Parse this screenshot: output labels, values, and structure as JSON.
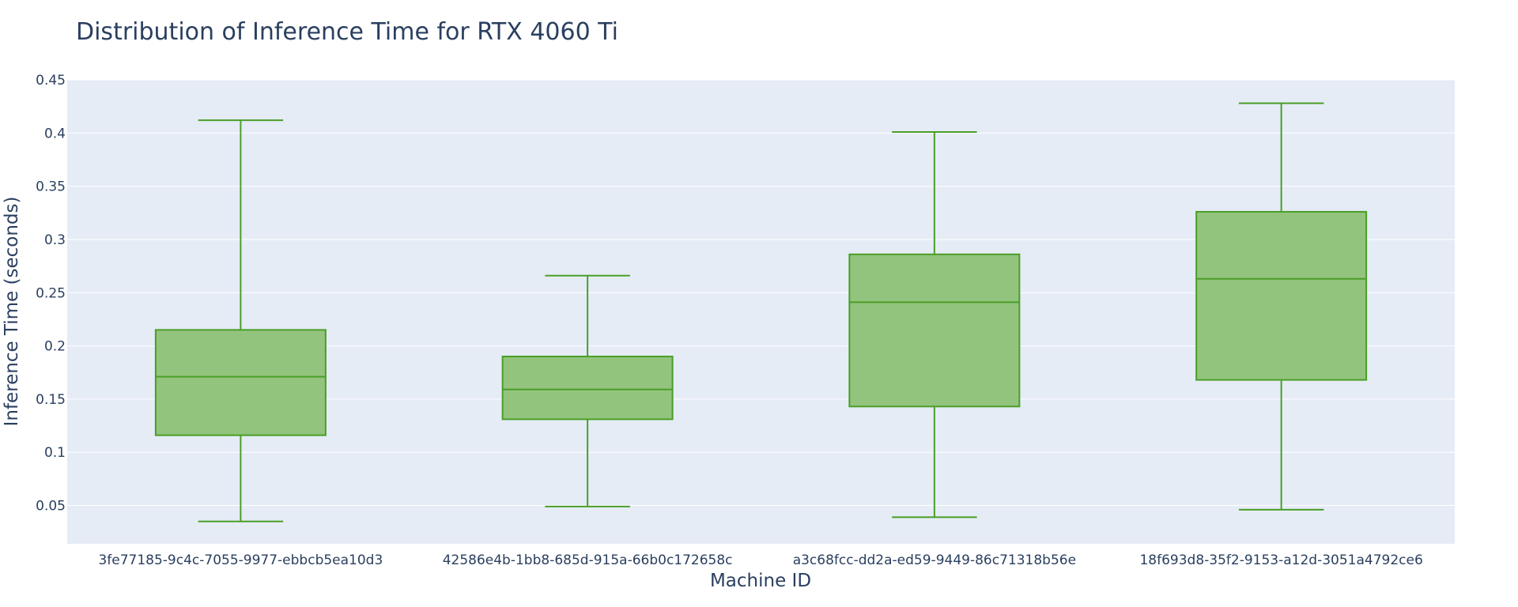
{
  "chart_data": {
    "type": "box",
    "title": "Distribution of Inference Time for RTX 4060 Ti",
    "xlabel": "Machine ID",
    "ylabel": "Inference Time (seconds)",
    "ylim": [
      0.014,
      0.45
    ],
    "yticks": [
      0.05,
      0.1,
      0.15,
      0.2,
      0.25,
      0.3,
      0.35,
      0.4,
      0.45
    ],
    "ytick_labels": [
      "0.05",
      "0.1",
      "0.15",
      "0.2",
      "0.25",
      "0.3",
      "0.35",
      "0.4",
      "0.45"
    ],
    "grid": true,
    "colors": {
      "line": "#4a9e27",
      "fill": "#93c47d",
      "plot_bg": "#e5ecf6",
      "grid": "#ffffff"
    },
    "categories": [
      "3fe77185-9c4c-7055-9977-ebbcb5ea10d3",
      "42586e4b-1bb8-685d-915a-66b0c172658c",
      "a3c68fcc-dd2a-ed59-9449-86c71318b56e",
      "18f693d8-35f2-9153-a12d-3051a4792ce6"
    ],
    "boxes": [
      {
        "min": 0.035,
        "q1": 0.116,
        "median": 0.171,
        "q3": 0.215,
        "max": 0.412
      },
      {
        "min": 0.049,
        "q1": 0.131,
        "median": 0.159,
        "q3": 0.19,
        "max": 0.266
      },
      {
        "min": 0.039,
        "q1": 0.143,
        "median": 0.241,
        "q3": 0.286,
        "max": 0.401
      },
      {
        "min": 0.046,
        "q1": 0.168,
        "median": 0.263,
        "q3": 0.326,
        "max": 0.428
      }
    ]
  }
}
